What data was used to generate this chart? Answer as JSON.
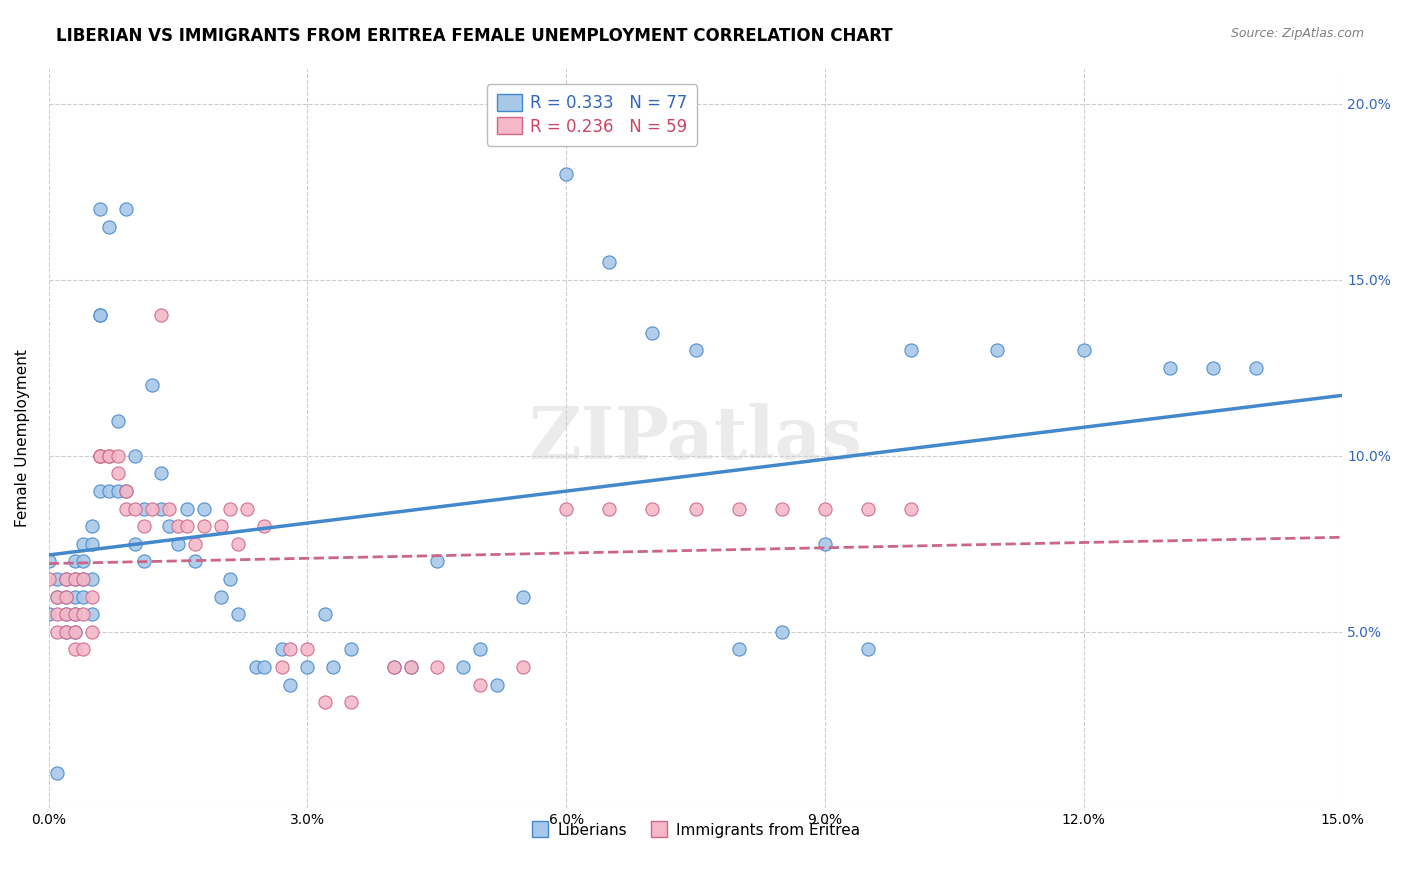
{
  "title": "LIBERIAN VS IMMIGRANTS FROM ERITREA FEMALE UNEMPLOYMENT CORRELATION CHART",
  "source": "Source: ZipAtlas.com",
  "ylabel": "Female Unemployment",
  "x_min": 0.0,
  "x_max": 0.15,
  "y_min": 0.0,
  "y_max": 0.21,
  "x_ticks": [
    0.0,
    0.03,
    0.06,
    0.09,
    0.12,
    0.15
  ],
  "x_tick_labels": [
    "0.0%",
    "3.0%",
    "6.0%",
    "9.0%",
    "12.0%",
    "15.0%"
  ],
  "y_ticks": [
    0.0,
    0.05,
    0.1,
    0.15,
    0.2
  ],
  "y_tick_labels_right": [
    "",
    "5.0%",
    "10.0%",
    "15.0%",
    "20.0%"
  ],
  "watermark": "ZIPatlas",
  "legend_r1": "R = 0.333",
  "legend_n1": "N = 77",
  "legend_r2": "R = 0.236",
  "legend_n2": "N = 59",
  "color_blue": "#a8c8e8",
  "color_pink": "#f4b8c8",
  "color_blue_line": "#4488cc",
  "color_pink_line": "#cc6688",
  "color_blue_text": "#3366bb",
  "color_pink_text": "#cc4466",
  "liberian_x": [
    0.0,
    0.001,
    0.001,
    0.002,
    0.002,
    0.002,
    0.003,
    0.003,
    0.003,
    0.003,
    0.004,
    0.004,
    0.004,
    0.005,
    0.005,
    0.005,
    0.006,
    0.006,
    0.006,
    0.007,
    0.007,
    0.008,
    0.008,
    0.009,
    0.009,
    0.01,
    0.01,
    0.011,
    0.011,
    0.012,
    0.013,
    0.013,
    0.014,
    0.015,
    0.016,
    0.017,
    0.018,
    0.02,
    0.021,
    0.022,
    0.024,
    0.025,
    0.027,
    0.028,
    0.03,
    0.032,
    0.033,
    0.035,
    0.04,
    0.042,
    0.045,
    0.048,
    0.05,
    0.052,
    0.055,
    0.057,
    0.06,
    0.065,
    0.07,
    0.075,
    0.08,
    0.085,
    0.09,
    0.095,
    0.1,
    0.11,
    0.12,
    0.13,
    0.135,
    0.14,
    0.002,
    0.003,
    0.004,
    0.005,
    0.006,
    0.0,
    0.001
  ],
  "liberian_y": [
    0.07,
    0.065,
    0.06,
    0.065,
    0.06,
    0.055,
    0.07,
    0.065,
    0.06,
    0.055,
    0.075,
    0.07,
    0.065,
    0.08,
    0.075,
    0.065,
    0.17,
    0.14,
    0.09,
    0.165,
    0.09,
    0.11,
    0.09,
    0.17,
    0.09,
    0.1,
    0.075,
    0.085,
    0.07,
    0.12,
    0.095,
    0.085,
    0.08,
    0.075,
    0.085,
    0.07,
    0.085,
    0.06,
    0.065,
    0.055,
    0.04,
    0.04,
    0.045,
    0.035,
    0.04,
    0.055,
    0.04,
    0.045,
    0.04,
    0.04,
    0.07,
    0.04,
    0.045,
    0.035,
    0.06,
    0.19,
    0.18,
    0.155,
    0.135,
    0.13,
    0.045,
    0.05,
    0.075,
    0.045,
    0.13,
    0.13,
    0.13,
    0.125,
    0.125,
    0.125,
    0.05,
    0.05,
    0.06,
    0.055,
    0.14,
    0.055,
    0.01
  ],
  "eritrea_x": [
    0.0,
    0.001,
    0.001,
    0.001,
    0.002,
    0.002,
    0.002,
    0.002,
    0.003,
    0.003,
    0.003,
    0.003,
    0.004,
    0.004,
    0.004,
    0.005,
    0.005,
    0.006,
    0.006,
    0.006,
    0.007,
    0.007,
    0.008,
    0.008,
    0.009,
    0.009,
    0.01,
    0.011,
    0.012,
    0.013,
    0.014,
    0.015,
    0.016,
    0.017,
    0.018,
    0.02,
    0.021,
    0.022,
    0.023,
    0.025,
    0.027,
    0.028,
    0.03,
    0.032,
    0.035,
    0.04,
    0.042,
    0.045,
    0.05,
    0.055,
    0.06,
    0.065,
    0.07,
    0.075,
    0.08,
    0.085,
    0.09,
    0.095,
    0.1
  ],
  "eritrea_y": [
    0.065,
    0.06,
    0.055,
    0.05,
    0.065,
    0.06,
    0.055,
    0.05,
    0.065,
    0.055,
    0.05,
    0.045,
    0.065,
    0.055,
    0.045,
    0.06,
    0.05,
    0.1,
    0.1,
    0.1,
    0.1,
    0.1,
    0.1,
    0.095,
    0.09,
    0.085,
    0.085,
    0.08,
    0.085,
    0.14,
    0.085,
    0.08,
    0.08,
    0.075,
    0.08,
    0.08,
    0.085,
    0.075,
    0.085,
    0.08,
    0.04,
    0.045,
    0.045,
    0.03,
    0.03,
    0.04,
    0.04,
    0.04,
    0.035,
    0.04,
    0.085,
    0.085,
    0.085,
    0.085,
    0.085,
    0.085,
    0.085,
    0.085,
    0.085
  ]
}
